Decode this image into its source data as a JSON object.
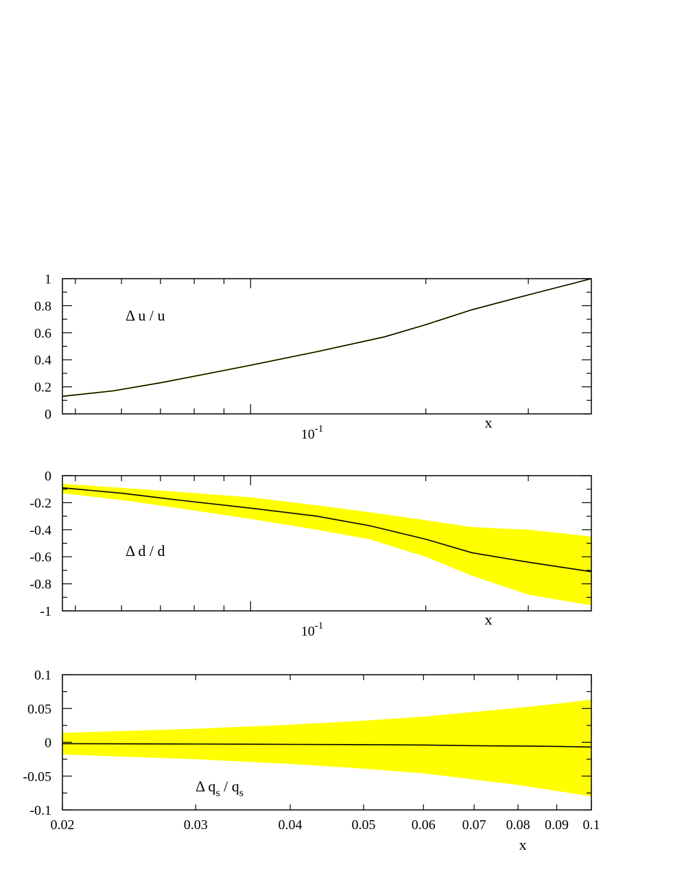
{
  "chart_data": [
    {
      "type": "line",
      "annotation": "Δ u / u",
      "xlabel": "x",
      "xscale": "log",
      "xlim": [
        0.0475,
        0.385
      ],
      "ylim": [
        0,
        1
      ],
      "yticks": [
        0,
        0.2,
        0.4,
        0.6,
        0.8,
        1
      ],
      "ytick_labels": [
        "0",
        "0.2",
        "0.4",
        "0.6",
        "0.8",
        "1"
      ],
      "xtick_label": "10",
      "xtick_label_exp": "-1",
      "band_color": "#ffff00",
      "line_color": "#000000",
      "x": [
        0.0475,
        0.058,
        0.07,
        0.085,
        0.1,
        0.13,
        0.17,
        0.2,
        0.24,
        0.3,
        0.385
      ],
      "y": [
        0.13,
        0.17,
        0.23,
        0.3,
        0.36,
        0.46,
        0.57,
        0.66,
        0.77,
        0.88,
        1.0
      ],
      "upper": [
        0.135,
        0.175,
        0.235,
        0.305,
        0.365,
        0.465,
        0.575,
        0.665,
        0.775,
        0.885,
        1.0
      ],
      "lower": [
        0.125,
        0.165,
        0.225,
        0.295,
        0.355,
        0.455,
        0.565,
        0.655,
        0.765,
        0.875,
        0.995
      ]
    },
    {
      "type": "line",
      "annotation": "Δ d / d",
      "xlabel": "x",
      "xscale": "log",
      "xlim": [
        0.0475,
        0.385
      ],
      "ylim": [
        -1,
        0
      ],
      "yticks": [
        -1,
        -0.8,
        -0.6,
        -0.4,
        -0.2,
        0
      ],
      "ytick_labels": [
        "-1",
        "-0.8",
        "-0.6",
        "-0.4",
        "-0.2",
        "0"
      ],
      "xtick_label": "10",
      "xtick_label_exp": "-1",
      "band_color": "#ffff00",
      "line_color": "#000000",
      "x": [
        0.0475,
        0.06,
        0.075,
        0.1,
        0.13,
        0.16,
        0.2,
        0.24,
        0.3,
        0.385
      ],
      "y": [
        -0.09,
        -0.13,
        -0.18,
        -0.24,
        -0.3,
        -0.37,
        -0.47,
        -0.57,
        -0.64,
        -0.71
      ],
      "upper": [
        -0.06,
        -0.09,
        -0.12,
        -0.16,
        -0.22,
        -0.27,
        -0.33,
        -0.38,
        -0.4,
        -0.45
      ],
      "lower": [
        -0.13,
        -0.18,
        -0.24,
        -0.32,
        -0.4,
        -0.47,
        -0.6,
        -0.74,
        -0.88,
        -0.96
      ]
    },
    {
      "type": "line",
      "annotation": "Δ q",
      "annotation_sub": "s",
      "annotation_sep": " / q",
      "annotation_sub2": "s",
      "xlabel": "x",
      "xscale": "log",
      "xlim": [
        0.02,
        0.1
      ],
      "ylim": [
        -0.1,
        0.1
      ],
      "yticks": [
        -0.1,
        -0.05,
        0,
        0.05,
        0.1
      ],
      "ytick_labels": [
        "-0.1",
        "-0.05",
        "0",
        "0.05",
        "0.1"
      ],
      "xticks": [
        0.02,
        0.03,
        0.04,
        0.05,
        0.06,
        0.07,
        0.08,
        0.09,
        0.1
      ],
      "xtick_labels": [
        "0.02",
        "0.03",
        "0.04",
        "0.05",
        "0.06",
        "0.07",
        "0.08",
        "0.09",
        "0.1"
      ],
      "band_color": "#ffff00",
      "line_color": "#000000",
      "x": [
        0.02,
        0.03,
        0.04,
        0.05,
        0.06,
        0.07,
        0.08,
        0.09,
        0.1
      ],
      "y": [
        -0.002,
        -0.0025,
        -0.003,
        -0.0035,
        -0.004,
        -0.005,
        -0.0055,
        -0.006,
        -0.007
      ],
      "upper": [
        0.014,
        0.02,
        0.026,
        0.032,
        0.038,
        0.045,
        0.051,
        0.057,
        0.063
      ],
      "lower": [
        -0.018,
        -0.025,
        -0.032,
        -0.039,
        -0.046,
        -0.055,
        -0.063,
        -0.072,
        -0.08
      ]
    }
  ]
}
